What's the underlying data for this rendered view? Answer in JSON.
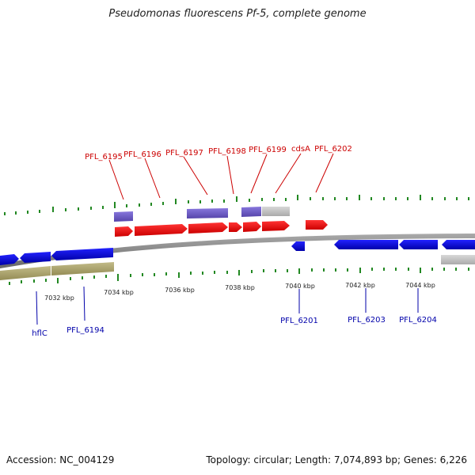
{
  "header": {
    "title": "Pseudomonas fluorescens Pf-5, complete genome"
  },
  "footer": {
    "accession": "Accession: NC_004129",
    "summary": "Topology: circular; Length: 7,074,893 bp; Genes: 6,226"
  },
  "colors": {
    "forward_cds": "#ee0000",
    "reverse_cds": "#0000dd",
    "forward_gene": "#7766cc",
    "grey_feature": "#bbbbbb",
    "reverse_gene": "#aaa066",
    "ticks": "#228822",
    "backbone": "#888888",
    "forward_label": "#cc0000",
    "reverse_label": "#0000aa"
  },
  "ruler": {
    "labels": [
      "7032 kbp",
      "7034 kbp",
      "7036 kbp",
      "7038 kbp",
      "7040 kbp",
      "7042 kbp",
      "7044 kbp"
    ]
  },
  "genes_top": [
    "PFL_6195",
    "PFL_6196",
    "PFL_6197",
    "PFL_6198",
    "PFL_6199",
    "cdsA",
    "PFL_6202"
  ],
  "genes_bottom": [
    "hflC",
    "PFL_6194",
    "PFL_6201",
    "PFL_6203",
    "PFL_6204"
  ]
}
